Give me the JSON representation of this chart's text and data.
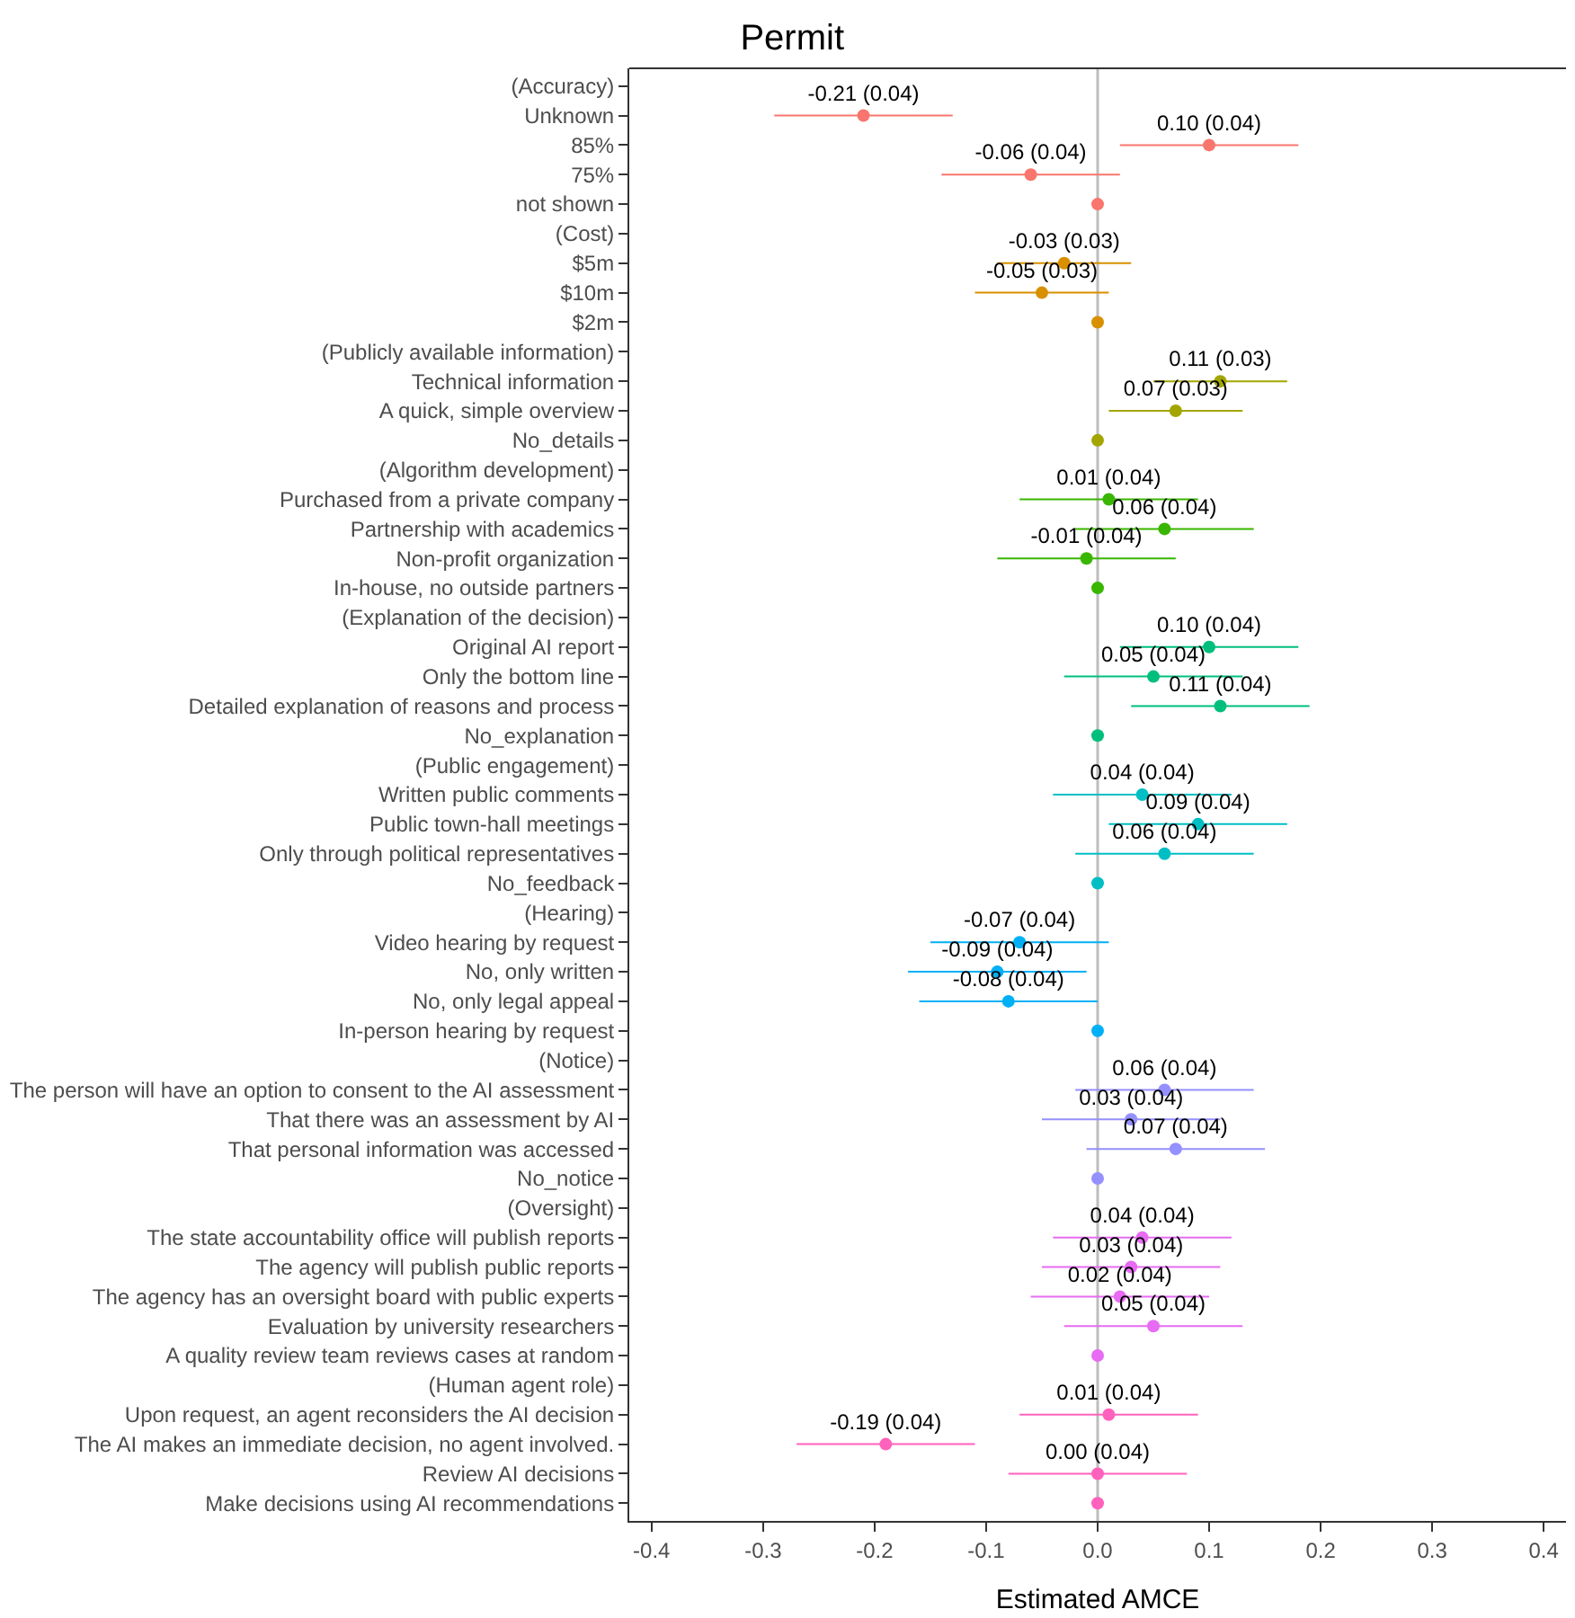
{
  "chart_data": {
    "type": "scatter",
    "orientation": "horizontal",
    "title": "Permit",
    "xlabel": "Estimated AMCE",
    "categories": [
      "(Accuracy)",
      "Unknown",
      "85%",
      "75%",
      "not shown",
      "(Cost)",
      "$5m",
      "$10m",
      "$2m",
      "(Publicly available information)",
      "Technical information",
      "A quick, simple overview",
      "No_details",
      "(Algorithm development)",
      "Purchased from a private company",
      "Partnership with academics",
      "Non-profit organization",
      "In-house, no outside partners",
      "(Explanation of the decision)",
      "Original AI report",
      "Only the bottom line",
      "Detailed explanation of reasons and process",
      "No_explanation",
      "(Public engagement)",
      "Written public comments",
      "Public town-hall meetings",
      "Only through political representatives",
      "No_feedback",
      "(Hearing)",
      "Video hearing by request",
      "No, only written",
      "No, only legal appeal",
      "In-person hearing by request",
      "(Notice)",
      "The person will have an option to consent to the AI assessment",
      "That there was an assessment by AI",
      "That personal information was accessed",
      "No_notice",
      "(Oversight)",
      "The state accountability office will publish reports",
      "The agency will publish public reports",
      "The agency has an oversight board with public experts",
      "Evaluation by university researchers",
      "A quality review team reviews cases at random",
      "(Human agent role)",
      "Upon request, an agent reconsiders the AI decision",
      "The AI makes an immediate decision, no agent involved.",
      "Review AI decisions",
      "Make decisions using AI recommendations"
    ],
    "values": [
      null,
      -0.21,
      0.1,
      -0.06,
      0,
      null,
      -0.03,
      -0.05,
      0,
      null,
      0.11,
      0.07,
      0,
      null,
      0.01,
      0.06,
      -0.01,
      0,
      null,
      0.1,
      0.05,
      0.11,
      0,
      null,
      0.04,
      0.09,
      0.06,
      0,
      null,
      -0.07,
      -0.09,
      -0.08,
      0,
      null,
      0.06,
      0.03,
      0.07,
      0,
      null,
      0.04,
      0.03,
      0.02,
      0.05,
      0,
      null,
      0.01,
      -0.19,
      0.0,
      0
    ],
    "errors": [
      null,
      0.08,
      0.08,
      0.08,
      null,
      null,
      0.06,
      0.06,
      null,
      null,
      0.06,
      0.06,
      null,
      null,
      0.08,
      0.08,
      0.08,
      null,
      null,
      0.08,
      0.08,
      0.08,
      null,
      null,
      0.08,
      0.08,
      0.08,
      null,
      null,
      0.08,
      0.08,
      0.08,
      null,
      null,
      0.08,
      0.08,
      0.08,
      null,
      null,
      0.08,
      0.08,
      0.08,
      0.08,
      null,
      null,
      0.08,
      0.08,
      0.08,
      null
    ],
    "value_labels": [
      null,
      "-0.21 (0.04)",
      "0.10 (0.04)",
      "-0.06 (0.04)",
      null,
      null,
      "-0.03 (0.03)",
      "-0.05 (0.03)",
      null,
      null,
      "0.11 (0.03)",
      "0.07 (0.03)",
      null,
      null,
      "0.01 (0.04)",
      "0.06 (0.04)",
      "-0.01 (0.04)",
      null,
      null,
      "0.10 (0.04)",
      "0.05 (0.04)",
      "0.11 (0.04)",
      null,
      null,
      "0.04 (0.04)",
      "0.09 (0.04)",
      "0.06 (0.04)",
      null,
      null,
      "-0.07 (0.04)",
      "-0.09 (0.04)",
      "-0.08 (0.04)",
      null,
      null,
      "0.06 (0.04)",
      "0.03 (0.04)",
      "0.07 (0.04)",
      null,
      null,
      "0.04 (0.04)",
      "0.03 (0.04)",
      "0.02 (0.04)",
      "0.05 (0.04)",
      null,
      null,
      "0.01 (0.04)",
      "-0.19 (0.04)",
      "0.00 (0.04)",
      null
    ],
    "colors": [
      null,
      "#f8766d",
      "#f8766d",
      "#f8766d",
      "#f8766d",
      null,
      "#d89000",
      "#d89000",
      "#d89000",
      null,
      "#a3a500",
      "#a3a500",
      "#a3a500",
      null,
      "#39b600",
      "#39b600",
      "#39b600",
      "#39b600",
      null,
      "#00bf7d",
      "#00bf7d",
      "#00bf7d",
      "#00bf7d",
      null,
      "#00bfc4",
      "#00bfc4",
      "#00bfc4",
      "#00bfc4",
      null,
      "#00b0f6",
      "#00b0f6",
      "#00b0f6",
      "#00b0f6",
      null,
      "#9590ff",
      "#9590ff",
      "#9590ff",
      "#9590ff",
      null,
      "#e76bf3",
      "#e76bf3",
      "#e76bf3",
      "#e76bf3",
      "#e76bf3",
      null,
      "#ff62bc",
      "#ff62bc",
      "#ff62bc",
      "#ff62bc"
    ],
    "xlim": [
      -0.42,
      0.42
    ],
    "xticks": [
      -0.4,
      -0.3,
      -0.2,
      -0.1,
      {
        "value": 0,
        "label": "0.0"
      },
      0.1,
      0.2,
      0.3,
      0.4
    ],
    "ref_lines": [
      {
        "axis": "x",
        "value": 0,
        "color": "#bdbdbd"
      }
    ],
    "marker": "circle",
    "grid": false,
    "legend": false
  }
}
